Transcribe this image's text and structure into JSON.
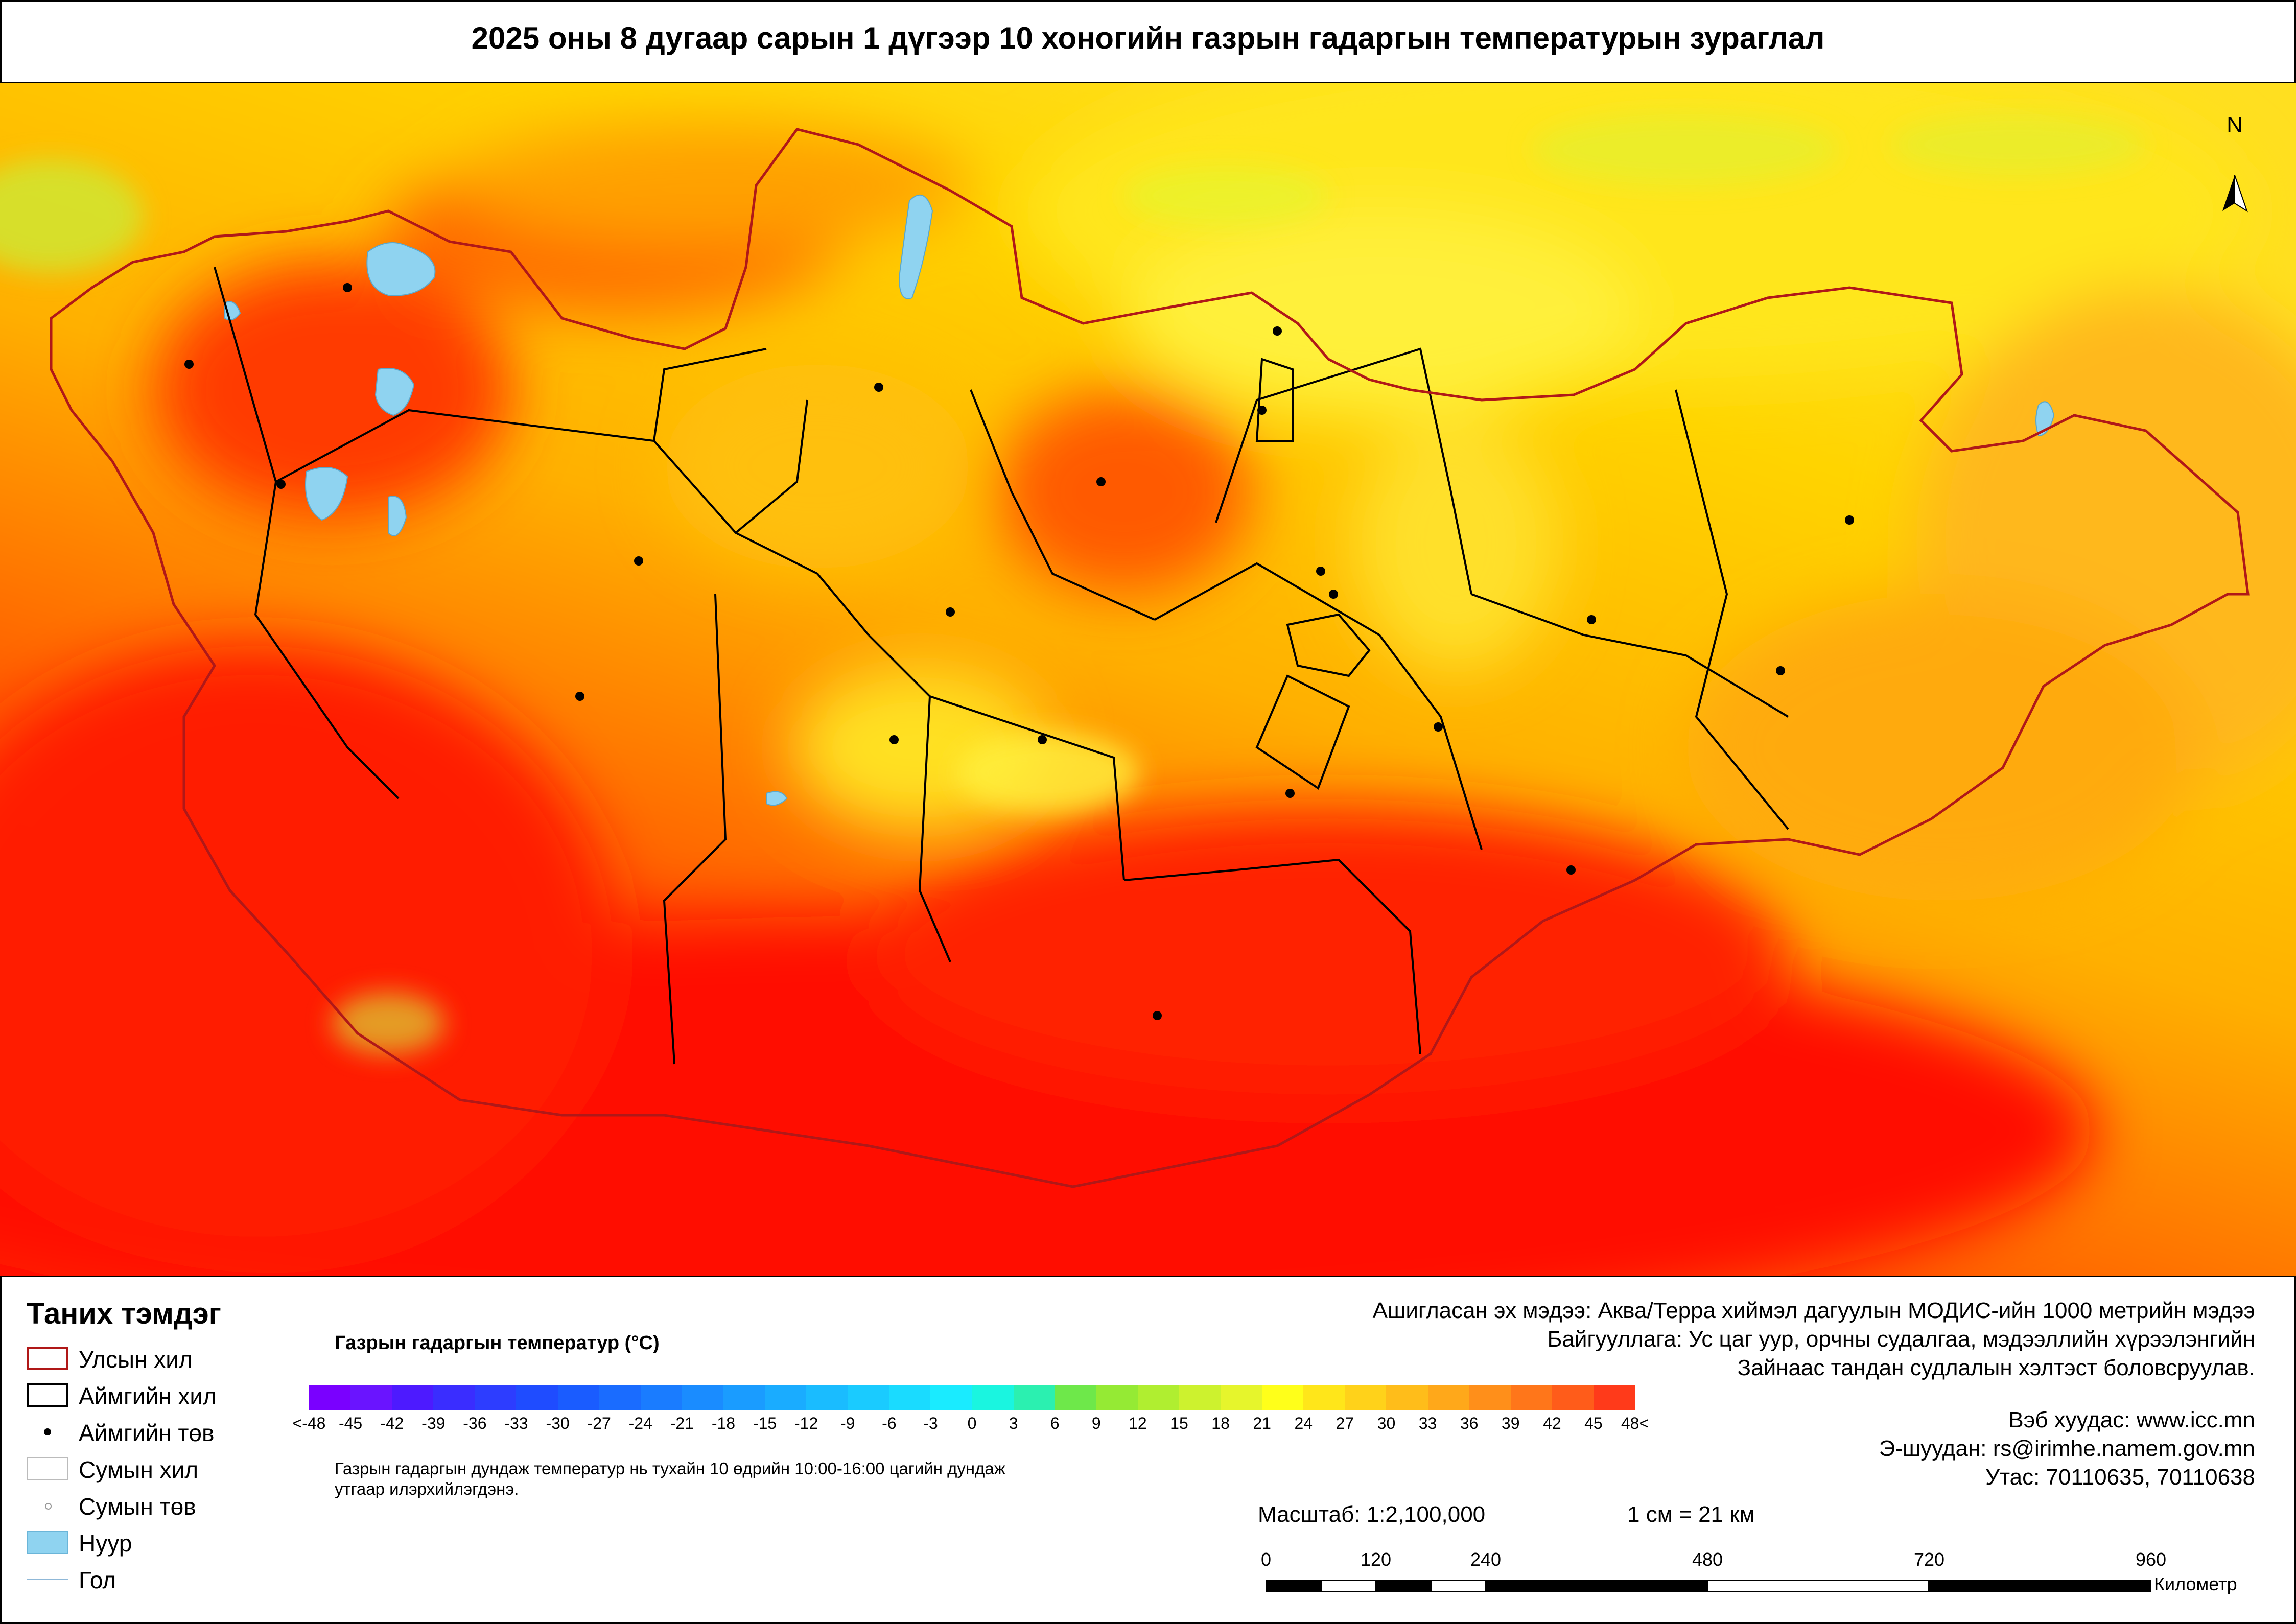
{
  "title": "2025 оны 8 дугаар сарын 1 дүгээр 10 хоногийн газрын гадаргын температурын зураглал",
  "map": {
    "north_label": "N",
    "colors": {
      "hot": "#ff1a00",
      "warm": "#ff8c00",
      "mild": "#ffc800",
      "cool": "#ffff33",
      "green": "#b5ef3a",
      "lake": "#8fd3f0",
      "border_country": "#b01818",
      "border_aimag": "#000000"
    }
  },
  "legend": {
    "title": "Таних тэмдэг",
    "items": [
      {
        "label": "Улсын хил",
        "symbol": "country-border"
      },
      {
        "label": "Аймгийн хил",
        "symbol": "aimag-border"
      },
      {
        "label": "Аймгийн төв",
        "symbol": "aimag-center"
      },
      {
        "label": "Сумын хил",
        "symbol": "soum-border"
      },
      {
        "label": "Сумын төв",
        "symbol": "soum-center"
      },
      {
        "label": "Нуур",
        "symbol": "lake"
      },
      {
        "label": "Гол",
        "symbol": "river"
      }
    ]
  },
  "colorbar": {
    "title": "Газрын гадаргын температур (°C)",
    "tick_labels": [
      "<-48",
      "-45",
      "-42",
      "-39",
      "-36",
      "-33",
      "-30",
      "-27",
      "-24",
      "-21",
      "-18",
      "-15",
      "-12",
      "-9",
      "-6",
      "-3",
      "0",
      "3",
      "6",
      "9",
      "12",
      "15",
      "18",
      "21",
      "24",
      "27",
      "30",
      "33",
      "36",
      "39",
      "42",
      "45",
      "48<"
    ],
    "colors": [
      "#7a00ff",
      "#6a14ff",
      "#4d1aff",
      "#3a2dff",
      "#2d3dff",
      "#1f4cff",
      "#1a5cff",
      "#1a6cff",
      "#1a7cff",
      "#1a8cff",
      "#1a9cff",
      "#1aacff",
      "#1abcff",
      "#1acbff",
      "#1adbff",
      "#1aebff",
      "#1af5e0",
      "#2bf0b0",
      "#6ee84a",
      "#95ea34",
      "#b0ee30",
      "#cdf22e",
      "#e6f52c",
      "#ffff1a",
      "#ffe61a",
      "#ffd21a",
      "#ffbd1a",
      "#ffa81a",
      "#ff8f1a",
      "#ff761a",
      "#ff5c1a",
      "#ff3a1a"
    ],
    "note": "Газрын гадаргын дундаж температур нь тухайн 10 өдрийн 10:00-16:00 цагийн дундаж утгаар илэрхийлэгдэнэ."
  },
  "source": {
    "lines": [
      "Ашигласан эх мэдээ: Аква/Терра хиймэл дагуулын МОДИС-ийн 1000 метрийн мэдээ",
      "Байгууллага: Ус цаг уур, орчны судалгаа, мэдээллийн хүрээлэнгийн",
      "Зайнаас тандан судлалын хэлтэст боловсруулав."
    ]
  },
  "contact": {
    "web": "Вэб хуудас: www.icc.mn",
    "email": "Э-шуудан: rs@irimhe.namem.gov.mn",
    "phone": "Утас: 70110635, 70110638"
  },
  "scale": {
    "ratio": "Масштаб: 1:2,100,000",
    "equivalence": "1 см = 21 км",
    "ticks": [
      "0",
      "120",
      "240",
      "480",
      "720",
      "960"
    ],
    "unit": "Километр"
  }
}
